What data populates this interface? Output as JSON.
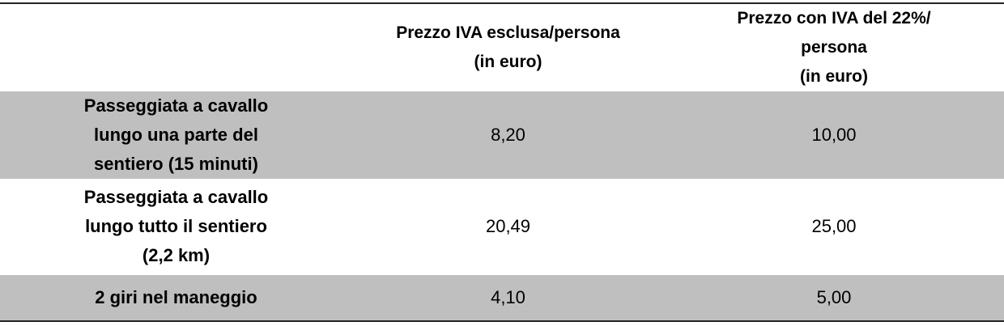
{
  "table": {
    "header": [
      [],
      [
        "Prezzo IVA esclusa/persona",
        "(in euro)"
      ],
      [
        "Prezzo con IVA del 22%/",
        "persona",
        "(in euro)"
      ]
    ],
    "rows": [
      [
        [
          "Passeggiata a cavallo",
          "lungo una parte del",
          "sentiero (15 minuti)"
        ],
        "8,20",
        "10,00"
      ],
      [
        [
          "Passeggiata a cavallo",
          "lungo tutto il sentiero",
          "(2,2 km)"
        ],
        "20,49",
        "25,00"
      ],
      [
        [
          "2 giri nel maneggio"
        ],
        "4,10",
        "5,00"
      ]
    ]
  }
}
